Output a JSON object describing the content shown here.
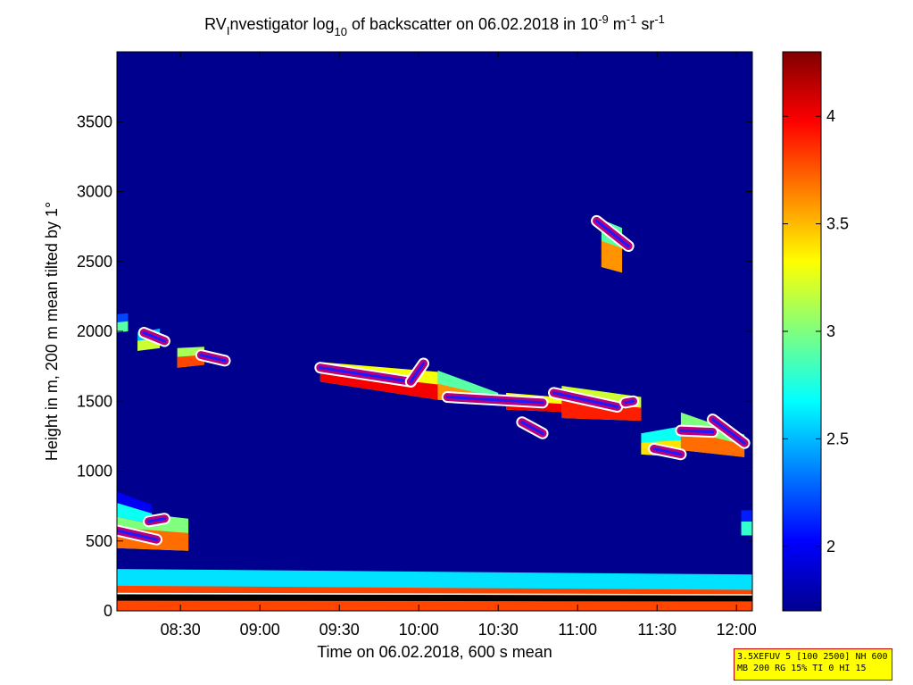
{
  "chart_data": {
    "type": "heatmap",
    "title": {
      "pre": "RV",
      "sub1": "I",
      "mid": "nvestigator log",
      "sub2": "10",
      "post": " of backscatter on 06.02.2018 in 10",
      "sup1": "-9",
      "m": " m",
      "sup2": "-1",
      "sr": " sr",
      "sup3": "-1"
    },
    "xlabel": "Time on 06.02.2018, 600 s mean",
    "ylabel": "Height in m, 200 m mean tilted by 1°",
    "xlim": [
      "08:06",
      "12:06"
    ],
    "ylim": [
      0,
      4000
    ],
    "x_ticks": [
      "08:30",
      "09:00",
      "09:30",
      "10:00",
      "10:30",
      "11:00",
      "11:30",
      "12:00"
    ],
    "y_ticks": [
      "0",
      "500",
      "1000",
      "1500",
      "2000",
      "2500",
      "3000",
      "3500"
    ],
    "colorbar": {
      "range": [
        1.7,
        4.3
      ],
      "ticks": [
        "2",
        "2.5",
        "3",
        "3.5",
        "4"
      ],
      "colormap": "jet"
    },
    "background_color": "#00008f",
    "cloud_layers": [
      {
        "t": [
          8.08,
          8.17
        ],
        "base": [
          1990,
          2000
        ],
        "top": [
          2120,
          2130
        ],
        "v": 2.9
      },
      {
        "t": [
          8.23,
          8.37
        ],
        "base": [
          1860,
          1880
        ],
        "top": [
          1990,
          2020
        ],
        "v": 3.2
      },
      {
        "t": [
          8.48,
          8.65
        ],
        "base": [
          1740,
          1760
        ],
        "top": [
          1880,
          1890
        ],
        "v": 3.8
      },
      {
        "t": [
          9.38,
          10.12
        ],
        "base": [
          1640,
          1510
        ],
        "top": [
          1780,
          1710
        ],
        "v": 4.0
      },
      {
        "t": [
          10.12,
          10.5
        ],
        "base": [
          1510,
          1480
        ],
        "top": [
          1720,
          1560
        ],
        "v": 3.6
      },
      {
        "t": [
          10.55,
          10.98
        ],
        "base": [
          1440,
          1420
        ],
        "top": [
          1560,
          1520
        ],
        "v": 4.0
      },
      {
        "t": [
          10.9,
          11.4
        ],
        "base": [
          1380,
          1360
        ],
        "top": [
          1610,
          1530
        ],
        "v": 3.9
      },
      {
        "t": [
          11.15,
          11.28
        ],
        "base": [
          2460,
          2420
        ],
        "top": [
          2800,
          2740
        ],
        "v": 3.6
      },
      {
        "t": [
          11.4,
          11.65
        ],
        "base": [
          1120,
          1100
        ],
        "top": [
          1270,
          1320
        ],
        "v": 3.4
      },
      {
        "t": [
          11.65,
          12.05
        ],
        "base": [
          1150,
          1100
        ],
        "top": [
          1420,
          1260
        ],
        "v": 3.7
      },
      {
        "t": [
          8.08,
          8.55
        ],
        "base": [
          450,
          430
        ],
        "top": [
          720,
          660
        ],
        "v": 3.7
      },
      {
        "t": [
          8.08,
          8.32
        ],
        "base": [
          680,
          620
        ],
        "top": [
          860,
          760
        ],
        "v": 2.7
      },
      {
        "t": [
          12.03,
          12.1
        ],
        "base": [
          540,
          540
        ],
        "top": [
          720,
          720
        ],
        "v": 2.8
      }
    ],
    "boundary_layer": {
      "t": [
        8.08,
        12.1
      ],
      "top": [
        300,
        260
      ],
      "core_top": [
        180,
        150
      ],
      "v": 3.8
    },
    "cloud_base_markers": [
      {
        "t": [
          8.08,
          8.35
        ],
        "h": [
          580,
          510
        ]
      },
      {
        "t": [
          8.3,
          8.4
        ],
        "h": [
          640,
          660
        ]
      },
      {
        "t": [
          8.27,
          8.4
        ],
        "h": [
          1990,
          1930
        ]
      },
      {
        "t": [
          8.63,
          8.78
        ],
        "h": [
          1830,
          1790
        ]
      },
      {
        "t": [
          9.38,
          9.95
        ],
        "h": [
          1740,
          1640
        ]
      },
      {
        "t": [
          9.95,
          10.03
        ],
        "h": [
          1640,
          1770
        ]
      },
      {
        "t": [
          10.18,
          10.78
        ],
        "h": [
          1530,
          1490
        ]
      },
      {
        "t": [
          10.65,
          10.78
        ],
        "h": [
          1350,
          1270
        ]
      },
      {
        "t": [
          10.85,
          11.25
        ],
        "h": [
          1560,
          1460
        ]
      },
      {
        "t": [
          11.12,
          11.32
        ],
        "h": [
          2790,
          2610
        ]
      },
      {
        "t": [
          11.48,
          11.65
        ],
        "h": [
          1160,
          1120
        ]
      },
      {
        "t": [
          11.65,
          11.85
        ],
        "h": [
          1290,
          1280
        ]
      },
      {
        "t": [
          11.85,
          12.05
        ],
        "h": [
          1370,
          1200
        ]
      },
      {
        "t": [
          11.3,
          11.35
        ],
        "h": [
          1490,
          1500
        ]
      }
    ]
  },
  "info_box": {
    "line1": "3.5XEFUV 5 [100 2500] NH 600",
    "line2": "MB 200 RG 15% TI 0 HI 15"
  }
}
